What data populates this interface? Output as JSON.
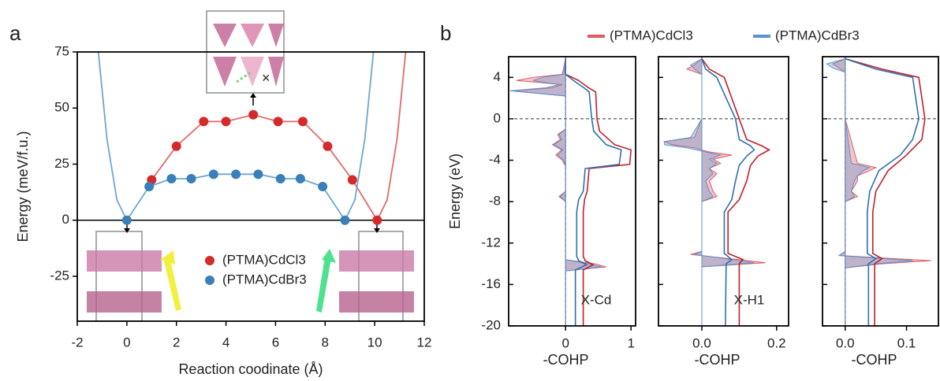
{
  "chart_data": [
    {
      "type": "energy_profile",
      "panel_label": "a",
      "xlabel": "Reaction coodinate (Å)",
      "ylabel": "Energy (meV/f.u.)",
      "xlim": [
        -2,
        12
      ],
      "xticks": [
        -2,
        0,
        2,
        4,
        6,
        8,
        10,
        12
      ],
      "ylim": [
        -45,
        75
      ],
      "yticks": [
        -25,
        0,
        25,
        50,
        75
      ],
      "series": [
        {
          "name": "(PTMA)CdCl3",
          "color": "#d42a2a",
          "x": [
            1.0,
            2.0,
            3.1,
            4.0,
            5.1,
            6.1,
            7.1,
            8.1,
            9.1,
            10.1
          ],
          "values": [
            18,
            33,
            44,
            44,
            47,
            44,
            44,
            33,
            18,
            0
          ]
        },
        {
          "name": "(PTMA)CdBr3",
          "color": "#3a7fb8",
          "x": [
            0,
            0.9,
            1.8,
            2.6,
            3.5,
            4.4,
            5.3,
            6.2,
            7.0,
            7.9,
            8.8
          ],
          "values": [
            0,
            15,
            18.5,
            18.5,
            20.5,
            20.5,
            20.5,
            18.5,
            18.5,
            15,
            0
          ]
        }
      ],
      "curves": [
        {
          "color": "#e06a6a",
          "x": [
            1.0,
            2.0,
            3.1,
            4.0,
            5.1,
            6.1,
            7.1,
            8.1,
            9.1,
            10.1,
            10.5,
            10.9,
            11.25
          ],
          "values": [
            18,
            33,
            44,
            44,
            47,
            44,
            44,
            33,
            18,
            0,
            9,
            36,
            75
          ]
        },
        {
          "color": "#6fa6cf",
          "x": [
            -1.15,
            -0.8,
            -0.4,
            0,
            0.9,
            1.8,
            2.6,
            3.5,
            4.4,
            5.3,
            6.2,
            7.0,
            7.9,
            8.8,
            9.2,
            9.6,
            9.95
          ],
          "values": [
            75,
            36,
            9,
            0,
            15,
            18.5,
            18.5,
            20.5,
            20.5,
            20.5,
            18.5,
            18.5,
            15,
            0,
            9,
            36,
            75
          ]
        }
      ]
    },
    {
      "type": "cohp",
      "panel_label": "b",
      "ylabel": "Energy (eV)",
      "xlabel": "-COHP",
      "ylim": [
        -20,
        6
      ],
      "yticks": [
        -20,
        -16,
        -12,
        -8,
        -4,
        0,
        4
      ],
      "series": [
        {
          "name": "(PTMA)CdCl3",
          "color": "#e05a60"
        },
        {
          "name": "(PTMA)CdBr3",
          "color": "#5b93cf"
        }
      ],
      "subplots": [
        {
          "label": "X-Cd",
          "xlim": [
            -0.87,
            1.07
          ],
          "xticks": [
            0,
            1
          ],
          "energy": [
            5.8,
            4.3,
            4.0,
            3.7,
            3.3,
            3.0,
            2.7,
            2.2,
            -1.0,
            -1.5,
            -2.0,
            -2.5,
            -3.0,
            -3.5,
            -4.0,
            -4.6,
            -7.0,
            -7.5,
            -8.0,
            -13.6,
            -14.0,
            -14.3,
            -14.7,
            -20
          ],
          "cohp": [
            [
              0,
              -0.05,
              -0.5,
              -0.75,
              -0.05,
              -0.2,
              -0.8,
              0,
              0,
              -0.12,
              -0.08,
              -0.2,
              -0.06,
              -0.15,
              -0.05,
              0,
              0,
              -0.1,
              0,
              0,
              0.45,
              0.62,
              0,
              0
            ],
            [
              0,
              -0.03,
              -0.35,
              -0.5,
              -0.1,
              -0.3,
              -0.85,
              0,
              0,
              -0.1,
              -0.06,
              -0.18,
              -0.04,
              -0.12,
              -0.03,
              0,
              0,
              -0.08,
              0,
              0,
              0.35,
              0.55,
              0,
              0
            ]
          ],
          "integrated_energy": [
            5.8,
            4.3,
            3.7,
            3.0,
            2.6,
            0,
            -1.2,
            -2.5,
            -3.0,
            -4.4,
            -4.8,
            -7.0,
            -7.8,
            -9.0,
            -13.3,
            -13.7,
            -14.1,
            -14.6,
            -20
          ],
          "integrated": [
            [
              0,
              0,
              0.2,
              0.35,
              0.46,
              0.48,
              0.52,
              0.75,
              1.0,
              0.98,
              0.36,
              0.33,
              0.29,
              0.27,
              0.27,
              0.3,
              0.42,
              0.27,
              0.27
            ],
            [
              0,
              0,
              0.12,
              0.28,
              0.36,
              0.4,
              0.43,
              0.62,
              0.85,
              0.82,
              0.3,
              0.27,
              0.2,
              0.17,
              0.17,
              0.2,
              0.32,
              0.15,
              0.15
            ]
          ]
        },
        {
          "label": "X-H1",
          "xlim": [
            -0.116,
            0.232
          ],
          "xticks": [
            {
              "value": 0,
              "label": "0.0"
            },
            0.2
          ],
          "energy": [
            5.8,
            5.2,
            4.8,
            4.3,
            0,
            -1.8,
            -2.2,
            -2.5,
            -2.8,
            -3.2,
            -3.5,
            -3.9,
            -4.3,
            -4.8,
            -5.3,
            -6.0,
            -7.0,
            -7.5,
            -8.0,
            -12.8,
            -13.1,
            -13.6,
            -13.9,
            -14.3,
            -20
          ],
          "cohp": [
            [
              0,
              -0.02,
              -0.04,
              0,
              0,
              -0.02,
              -0.1,
              -0.08,
              -0.02,
              0.02,
              0.08,
              0.03,
              0.05,
              0.02,
              0.04,
              0.02,
              0.03,
              0.04,
              0,
              0,
              -0.03,
              0.1,
              0.17,
              0,
              0
            ],
            [
              0,
              -0.03,
              -0.02,
              0,
              0,
              -0.03,
              -0.1,
              -0.1,
              -0.04,
              0.01,
              0.05,
              0.02,
              0.04,
              0.02,
              0.03,
              0.01,
              0.02,
              0.03,
              0,
              0,
              -0.02,
              0.08,
              0.14,
              0,
              0
            ]
          ],
          "integrated_energy": [
            5.8,
            4.8,
            4.0,
            0,
            -2.0,
            -2.6,
            -3.0,
            -3.6,
            -4.5,
            -6.0,
            -7.8,
            -9.0,
            -13.0,
            -13.6,
            -14.0,
            -20
          ],
          "integrated": [
            [
              0,
              0.02,
              0.06,
              0.1,
              0.12,
              0.16,
              0.18,
              0.15,
              0.13,
              0.12,
              0.1,
              0.07,
              0.07,
              0.11,
              0.1,
              0.1
            ],
            [
              0,
              0.01,
              0.04,
              0.09,
              0.1,
              0.13,
              0.14,
              0.12,
              0.1,
              0.09,
              0.08,
              0.06,
              0.06,
              0.08,
              0.065,
              0.063
            ]
          ]
        },
        {
          "xlim": [
            -0.037,
            0.152
          ],
          "xticks": [
            {
              "value": 0,
              "label": "0.0"
            },
            0.1
          ],
          "energy": [
            5.8,
            5.3,
            4.9,
            4.5,
            0,
            -4.3,
            -4.7,
            -5.0,
            -5.5,
            -6.0,
            -7.0,
            -7.5,
            -8.0,
            -12.8,
            -13.2,
            -13.7,
            -14.0,
            -14.4,
            -20
          ],
          "cohp": [
            [
              0,
              -0.02,
              -0.01,
              0,
              0,
              0.02,
              0.05,
              0.04,
              0.02,
              0.02,
              0.01,
              0.02,
              0,
              0,
              -0.01,
              0.14,
              0.06,
              0,
              0
            ],
            [
              0,
              -0.03,
              -0.02,
              0,
              0,
              0.01,
              0.04,
              0.03,
              0.02,
              0.015,
              0.01,
              0.015,
              0,
              0,
              -0.01,
              0.11,
              0.05,
              0,
              0
            ]
          ],
          "integrated_energy": [
            5.8,
            4.8,
            4.0,
            0,
            -2.0,
            -3.5,
            -5.0,
            -7.0,
            -9.0,
            -13.0,
            -13.5,
            -14.0,
            -20
          ],
          "integrated": [
            [
              0,
              0.06,
              0.12,
              0.13,
              0.125,
              0.1,
              0.07,
              0.05,
              0.045,
              0.045,
              0.06,
              0.048,
              0.048
            ],
            [
              0,
              0.05,
              0.11,
              0.12,
              0.11,
              0.09,
              0.055,
              0.04,
              0.036,
              0.036,
              0.05,
              0.038,
              0.038
            ]
          ]
        }
      ]
    }
  ]
}
